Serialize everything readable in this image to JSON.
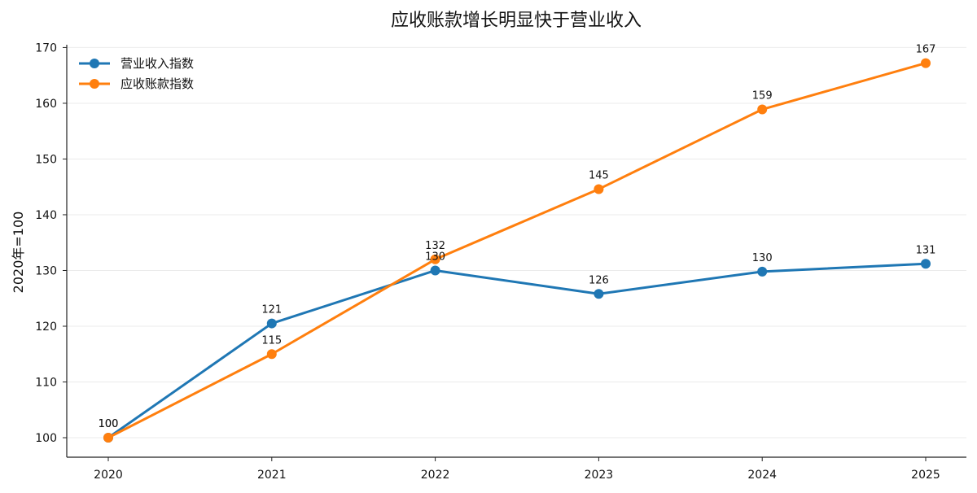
{
  "chart_data": {
    "type": "line",
    "title": "应收账款增长明显快于营业收入",
    "xlabel": "",
    "ylabel": "2020年=100",
    "x": [
      "2020",
      "2021",
      "2022",
      "2023",
      "2024",
      "2025"
    ],
    "ylim": [
      96.5,
      170.5
    ],
    "yticks": [
      100,
      110,
      120,
      130,
      140,
      150,
      160,
      170
    ],
    "grid": "horizontal",
    "legend_position": "top-left",
    "series": [
      {
        "name": "营业收入指数",
        "color": "#1f77b4",
        "values": [
          100,
          120.5,
          130,
          125.8,
          129.8,
          131.2
        ],
        "labels": [
          "100",
          "121",
          "130",
          "126",
          "130",
          "131"
        ]
      },
      {
        "name": "应收账款指数",
        "color": "#ff7f0e",
        "values": [
          100,
          115,
          132,
          144.6,
          158.9,
          167.2
        ],
        "labels": [
          "100",
          "115",
          "132",
          "145",
          "159",
          "167"
        ]
      }
    ]
  }
}
